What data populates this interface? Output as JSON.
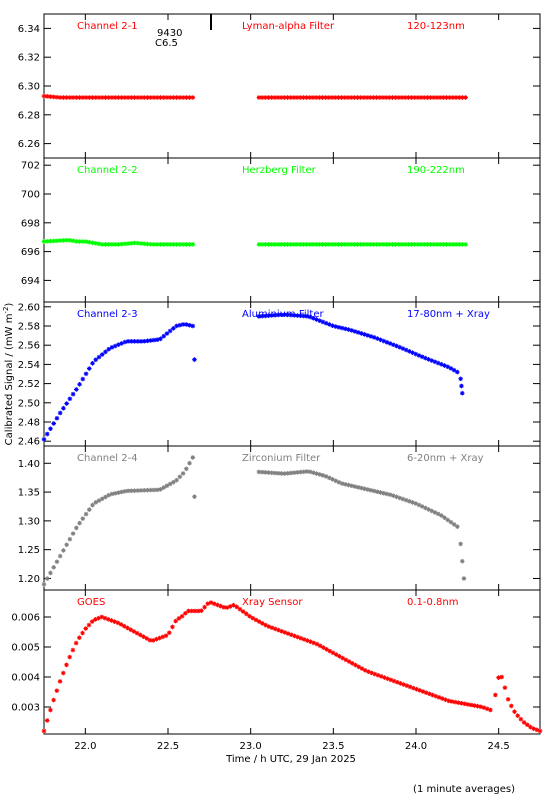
{
  "figure": {
    "ylabel_prefix": "Calibrated Signal / (mW m",
    "ylabel_exp": "-2",
    "ylabel_suffix": ")",
    "xlabel": "Time / h UTC, 29 Jan 2025",
    "footnote": "(1 minute averages)",
    "flare_label_1": "9430",
    "flare_label_2": "C6.5",
    "flare_time": 22.76
  },
  "chart_data": [
    {
      "type": "scatter",
      "label_left": "Channel 2-1",
      "label_mid": "Lyman-alpha Filter",
      "label_right": "120-123nm",
      "color": "#ff0000",
      "xlim": [
        21.75,
        24.75
      ],
      "ylim": [
        6.25,
        6.35
      ],
      "yticks": [
        "6.26",
        "6.28",
        "6.30",
        "6.32",
        "6.34"
      ],
      "segments": [
        {
          "x": [
            21.75,
            21.85,
            22.0,
            22.2,
            22.4,
            22.6,
            22.65
          ],
          "y": [
            6.293,
            6.292,
            6.292,
            6.292,
            6.292,
            6.292,
            6.292
          ]
        },
        {
          "x": [
            23.05,
            23.3,
            23.6,
            23.9,
            24.1,
            24.3
          ],
          "y": [
            6.292,
            6.292,
            6.292,
            6.292,
            6.292,
            6.292
          ]
        }
      ]
    },
    {
      "type": "scatter",
      "label_left": "Channel 2-2",
      "label_mid": "Herzberg Filter",
      "label_right": "190-222nm",
      "color": "#00ff00",
      "xlim": [
        21.75,
        24.75
      ],
      "ylim": [
        692.5,
        702.5
      ],
      "yticks": [
        "694",
        "696",
        "698",
        "700",
        "702"
      ],
      "segments": [
        {
          "x": [
            21.75,
            21.9,
            21.95,
            22.0,
            22.1,
            22.2,
            22.3,
            22.4,
            22.5,
            22.65
          ],
          "y": [
            696.7,
            696.8,
            696.7,
            696.7,
            696.5,
            696.5,
            696.6,
            696.5,
            696.5,
            696.5
          ]
        },
        {
          "x": [
            23.05,
            23.3,
            23.6,
            23.9,
            24.1,
            24.3
          ],
          "y": [
            696.5,
            696.5,
            696.5,
            696.5,
            696.5,
            696.5
          ]
        }
      ]
    },
    {
      "type": "scatter",
      "label_left": "Channel 2-3",
      "label_mid": "Aluminium Filter",
      "label_right": "17-80nm + Xray",
      "color": "#0000ff",
      "xlim": [
        21.75,
        24.75
      ],
      "ylim": [
        2.455,
        2.605
      ],
      "yticks": [
        "2.46",
        "2.48",
        "2.50",
        "2.52",
        "2.54",
        "2.56",
        "2.58",
        "2.60"
      ],
      "segments": [
        {
          "x": [
            21.75,
            21.85,
            21.95,
            22.05,
            22.15,
            22.25,
            22.35,
            22.45,
            22.55,
            22.6,
            22.65
          ],
          "y": [
            2.462,
            2.49,
            2.515,
            2.543,
            2.557,
            2.564,
            2.564,
            2.566,
            2.58,
            2.582,
            2.58
          ]
        },
        {
          "x": [
            22.66
          ],
          "y": [
            2.545
          ]
        },
        {
          "x": [
            23.05,
            23.2,
            23.35,
            23.5,
            23.6,
            23.75,
            23.9,
            24.05,
            24.2,
            24.25
          ],
          "y": [
            2.59,
            2.592,
            2.59,
            2.58,
            2.576,
            2.568,
            2.558,
            2.547,
            2.537,
            2.532
          ]
        },
        {
          "x": [
            24.27,
            24.28
          ],
          "y": [
            2.525,
            2.51
          ]
        }
      ]
    },
    {
      "type": "scatter",
      "label_left": "Channel 2-4",
      "label_mid": "Zirconium Filter",
      "label_right": "6-20nm + Xray",
      "color": "#808080",
      "xlim": [
        21.75,
        24.75
      ],
      "ylim": [
        1.18,
        1.43
      ],
      "yticks": [
        "1.20",
        "1.25",
        "1.30",
        "1.35",
        "1.40"
      ],
      "segments": [
        {
          "x": [
            21.75,
            21.85,
            21.95,
            22.05,
            22.15,
            22.25,
            22.35,
            22.45,
            22.55,
            22.6,
            22.65
          ],
          "y": [
            1.19,
            1.24,
            1.29,
            1.33,
            1.346,
            1.352,
            1.353,
            1.354,
            1.37,
            1.385,
            1.41
          ]
        },
        {
          "x": [
            22.66
          ],
          "y": [
            1.342
          ]
        },
        {
          "x": [
            23.05,
            23.2,
            23.35,
            23.45,
            23.55,
            23.7,
            23.85,
            24.0,
            24.15,
            24.25
          ],
          "y": [
            1.385,
            1.382,
            1.386,
            1.378,
            1.365,
            1.355,
            1.345,
            1.33,
            1.31,
            1.29
          ]
        },
        {
          "x": [
            24.27,
            24.29
          ],
          "y": [
            1.26,
            1.2
          ]
        }
      ]
    },
    {
      "type": "scatter",
      "label_left": "GOES",
      "label_mid": "Xray Sensor",
      "label_right": "0.1-0.8nm",
      "color": "#ff0000",
      "xlim": [
        21.75,
        24.75
      ],
      "ylim": [
        0.0021,
        0.0069
      ],
      "yticks": [
        "0.003",
        "0.004",
        "0.005",
        "0.006"
      ],
      "segments": [
        {
          "x": [
            21.75,
            21.8,
            21.85,
            21.9,
            21.95,
            22.0,
            22.05,
            22.1,
            22.15,
            22.2,
            22.3,
            22.4,
            22.5,
            22.55,
            22.58,
            22.62,
            22.7,
            22.75,
            22.8,
            22.85,
            22.9,
            22.95,
            23.0,
            23.1,
            23.2,
            23.3,
            23.4,
            23.5,
            23.6,
            23.7,
            23.8,
            23.9,
            24.0,
            24.1,
            24.2,
            24.3,
            24.4,
            24.45
          ],
          "y": [
            0.0022,
            0.0031,
            0.0039,
            0.0046,
            0.0052,
            0.0056,
            0.0059,
            0.006,
            0.0059,
            0.0058,
            0.0055,
            0.0052,
            0.0054,
            0.0059,
            0.006,
            0.0062,
            0.0062,
            0.0065,
            0.0064,
            0.0063,
            0.0064,
            0.0062,
            0.006,
            0.0057,
            0.0055,
            0.0053,
            0.0051,
            0.0048,
            0.0045,
            0.0042,
            0.004,
            0.0038,
            0.0036,
            0.0034,
            0.0032,
            0.0031,
            0.003,
            0.0029
          ]
        },
        {
          "x": [
            24.48,
            24.5,
            24.52,
            24.54,
            24.56,
            24.6,
            24.65,
            24.7,
            24.75
          ],
          "y": [
            0.0034,
            0.004,
            0.004,
            0.0036,
            0.0032,
            0.0028,
            0.0025,
            0.0023,
            0.0022
          ]
        }
      ]
    }
  ],
  "xaxis": {
    "xlim": [
      21.75,
      24.75
    ],
    "ticks": [
      22.0,
      22.5,
      23.0,
      23.5,
      24.0,
      24.5
    ],
    "tick_labels": [
      "22.0",
      "22.5",
      "23.0",
      "23.5",
      "24.0",
      "24.5"
    ]
  }
}
